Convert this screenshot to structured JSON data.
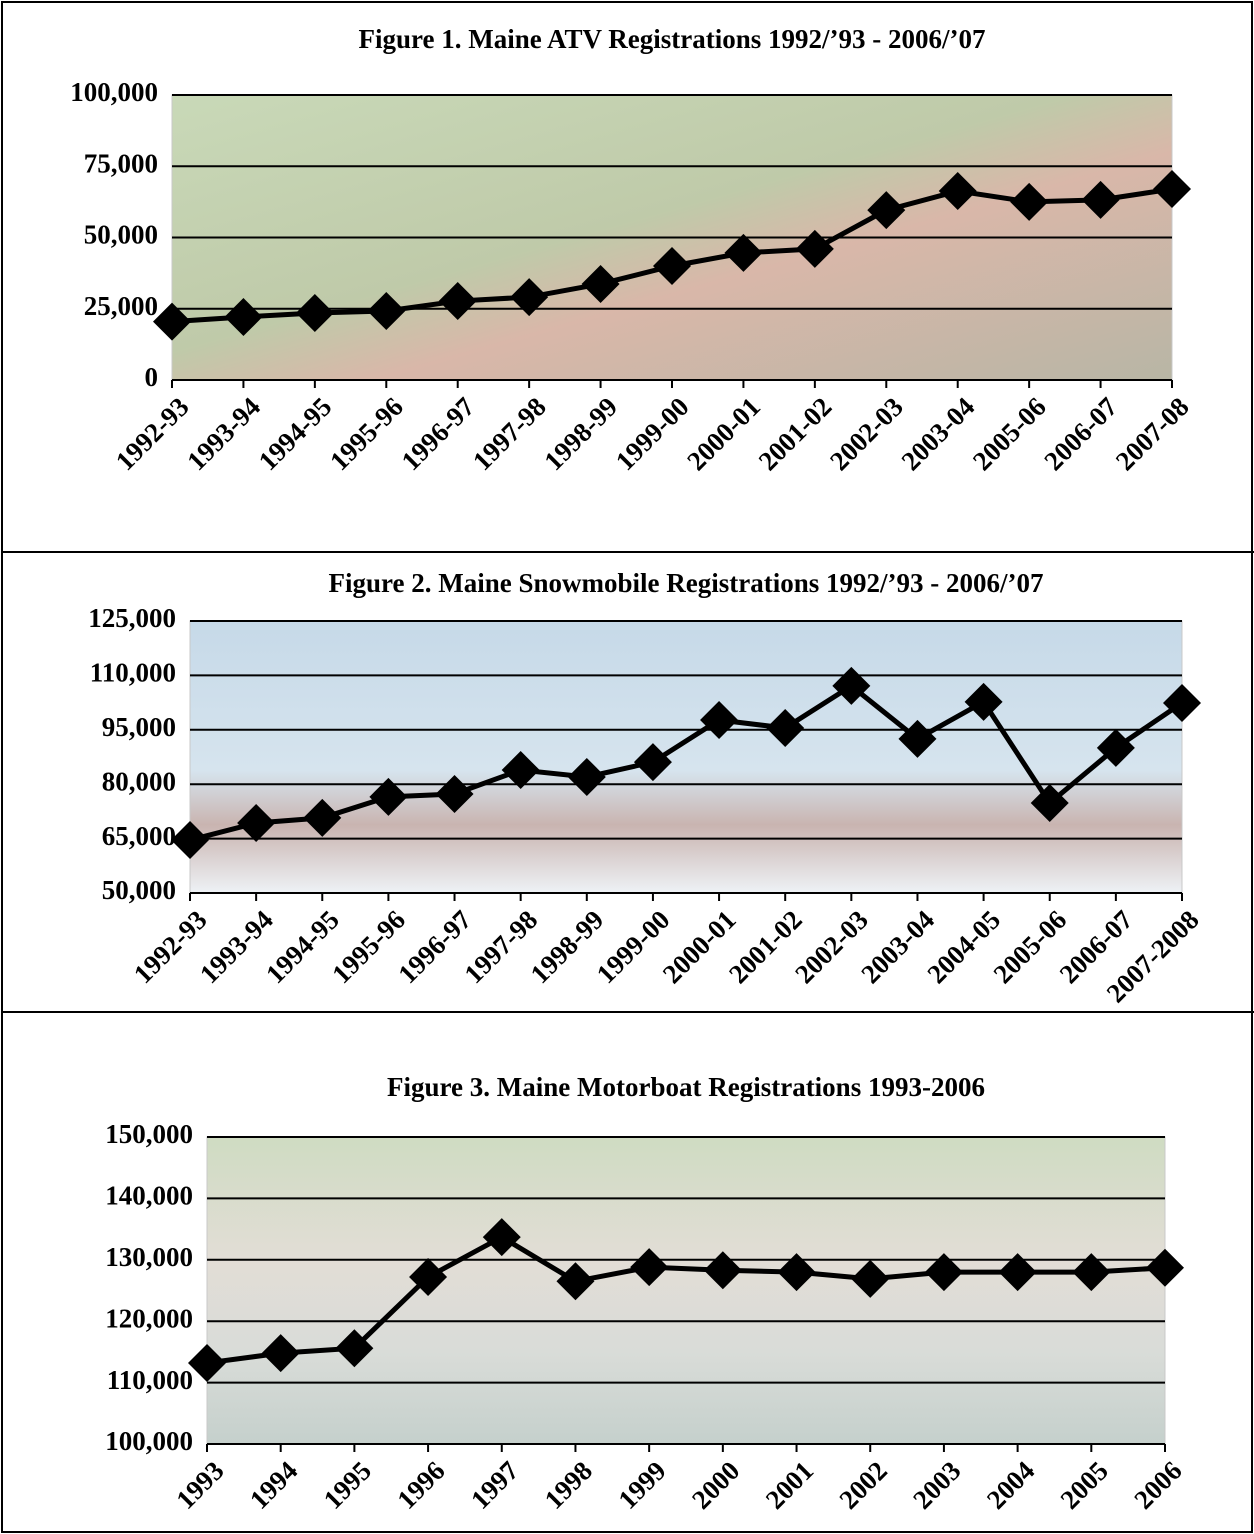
{
  "chart_data": [
    {
      "type": "line",
      "title": "Figure 1. Maine ATV Registrations 1992/’93 - 2006/’07",
      "categories": [
        "1992-93",
        "1993-94",
        "1994-95",
        "1995-96",
        "1996-97",
        "1997-98",
        "1998-99",
        "1999-00",
        "2000-01",
        "2001-02",
        "2002-03",
        "2003-04",
        "2005-06",
        "2006-07",
        "2007-08"
      ],
      "series": [
        {
          "color": "#000000",
          "values": [
            20500,
            22100,
            23500,
            24200,
            27700,
            29100,
            33700,
            40000,
            44600,
            46000,
            59600,
            66300,
            62500,
            63200,
            67000
          ]
        }
      ],
      "ylim": [
        0,
        100000
      ],
      "yticks": [
        0,
        {
          "value": 25000,
          "label": "25,000"
        },
        {
          "value": 50000,
          "label": "50,000"
        },
        {
          "value": 75000,
          "label": "75,000"
        },
        {
          "value": 100000,
          "label": "100,000"
        }
      ],
      "grid": true
    },
    {
      "type": "line",
      "title": "Figure 2. Maine Snowmobile Registrations 1992/’93 - 2006/’07",
      "categories": [
        "1992-93",
        "1993-94",
        "1994-95",
        "1995-96",
        "1996-97",
        "1997-98",
        "1998-99",
        "1999-00",
        "2000-01",
        "2001-02",
        "2002-03",
        "2003-04",
        "2004-05",
        "2005-06",
        "2006-07",
        "2007-2008"
      ],
      "series": [
        {
          "color": "#000000",
          "values": [
            64600,
            69300,
            70700,
            76500,
            77300,
            83900,
            82000,
            86100,
            97700,
            95500,
            107100,
            92500,
            102700,
            74800,
            90000,
            102400
          ]
        }
      ],
      "ylim": [
        50000,
        125000
      ],
      "yticks": [
        {
          "value": 50000,
          "label": "50,000"
        },
        {
          "value": 65000,
          "label": "65,000"
        },
        {
          "value": 80000,
          "label": "80,000"
        },
        {
          "value": 95000,
          "label": "95,000"
        },
        {
          "value": 110000,
          "label": "110,000"
        },
        {
          "value": 125000,
          "label": "125,000"
        }
      ],
      "grid": true
    },
    {
      "type": "line",
      "title": "Figure 3. Maine Motorboat Registrations 1993-2006",
      "categories": [
        "1993",
        "1994",
        "1995",
        "1996",
        "1997",
        "1998",
        "1999",
        "2000",
        "2001",
        "2002",
        "2003",
        "2004",
        "2005",
        "2006"
      ],
      "series": [
        {
          "color": "#000000",
          "values": [
            113200,
            114800,
            115600,
            127200,
            133700,
            126500,
            128800,
            128300,
            128000,
            126900,
            128000,
            128000,
            128000,
            128700
          ]
        }
      ],
      "ylim": [
        100000,
        150000
      ],
      "yticks": [
        {
          "value": 100000,
          "label": "100,000"
        },
        {
          "value": 110000,
          "label": "110,000"
        },
        {
          "value": 120000,
          "label": "120,000"
        },
        {
          "value": 130000,
          "label": "130,000"
        },
        {
          "value": 140000,
          "label": "140,000"
        },
        {
          "value": 150000,
          "label": "150,000"
        }
      ],
      "grid": true
    }
  ]
}
